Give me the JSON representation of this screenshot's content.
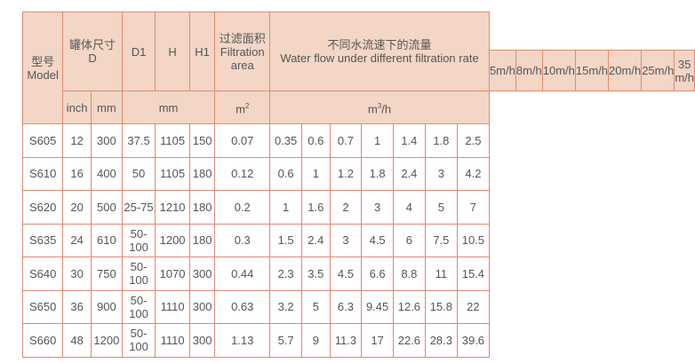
{
  "header": {
    "model_cn": "型号",
    "model_en": "Model",
    "d_cn": "罐体尺寸",
    "d_en": "D",
    "d1": "D1",
    "h": "H",
    "h1": "H1",
    "area_cn": "过滤面积",
    "area_en1": "Filtration",
    "area_en2": "area",
    "flow_cn": "不同水流速下的流量",
    "flow_en": "Water flow under different filtration rate",
    "rates": [
      "5m/h",
      "8m/h",
      "10m/h",
      "15m/h",
      "20m/h",
      "25m/h",
      "35 m/h"
    ],
    "inch": "inch",
    "mm": "mm",
    "mm2": "mm",
    "m2": "m",
    "m2_sup": "2",
    "m3h_a": "m",
    "m3h_sup": "3",
    "m3h_b": "/h"
  },
  "rows": [
    [
      "S605",
      "12",
      "300",
      "37.5",
      "1105",
      "150",
      "0.07",
      "0.35",
      "0.6",
      "0.7",
      "1",
      "1.4",
      "1.8",
      "2.5"
    ],
    [
      "S610",
      "16",
      "400",
      "50",
      "1105",
      "180",
      "0.12",
      "0.6",
      "1",
      "1.2",
      "1.8",
      "2.4",
      "3",
      "4.2"
    ],
    [
      "S620",
      "20",
      "500",
      "25-75",
      "1210",
      "180",
      "0.2",
      "1",
      "1.6",
      "2",
      "3",
      "4",
      "5",
      "7"
    ],
    [
      "S635",
      "24",
      "610",
      "50-100",
      "1200",
      "180",
      "0.3",
      "1.5",
      "2.4",
      "3",
      "4.5",
      "6",
      "7.5",
      "10.5"
    ],
    [
      "S640",
      "30",
      "750",
      "50-100",
      "1070",
      "300",
      "0.44",
      "2.3",
      "3.5",
      "4.5",
      "6.6",
      "8.8",
      "11",
      "15.4"
    ],
    [
      "S650",
      "36",
      "900",
      "50-100",
      "1110",
      "300",
      "0.63",
      "3.2",
      "5",
      "6.3",
      "9.45",
      "12.6",
      "15.8",
      "22"
    ],
    [
      "S660",
      "48",
      "1200",
      "50-100",
      "1110",
      "300",
      "1.13",
      "5.7",
      "9",
      "11.3",
      "17",
      "22.6",
      "28.3",
      "39.6"
    ]
  ]
}
